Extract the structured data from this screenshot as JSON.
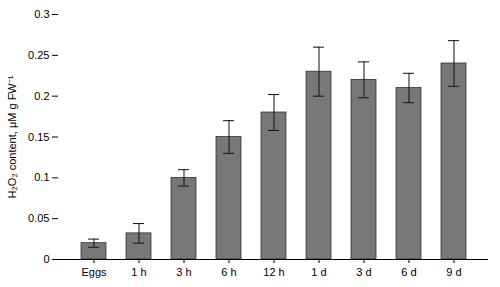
{
  "chart_data": {
    "type": "bar",
    "categories": [
      "Eggs",
      "1 h",
      "3 h",
      "6 h",
      "12 h",
      "1 d",
      "3 d",
      "6 d",
      "9 d"
    ],
    "values": [
      0.02,
      0.032,
      0.1,
      0.15,
      0.18,
      0.23,
      0.22,
      0.21,
      0.24
    ],
    "errors": [
      0.005,
      0.012,
      0.01,
      0.02,
      0.022,
      0.03,
      0.022,
      0.018,
      0.028
    ],
    "color": "#787878",
    "ylabel": "H₂O₂ content, μM g FW⁻¹",
    "ylim": [
      0,
      0.3
    ],
    "yticks": [
      0,
      0.05,
      0.1,
      0.15,
      0.2,
      0.25,
      0.3
    ]
  }
}
